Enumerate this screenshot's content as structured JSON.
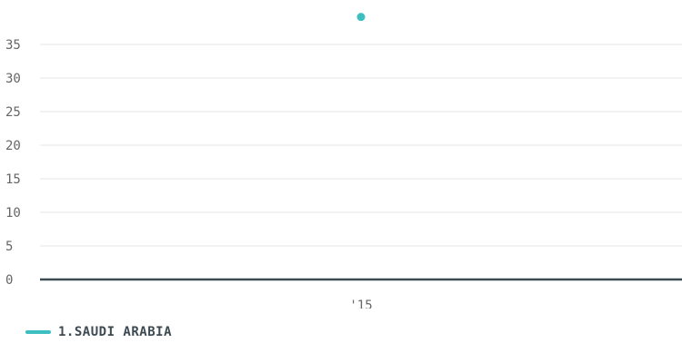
{
  "chart_data": {
    "type": "line",
    "title": "",
    "xlabel": "",
    "ylabel": "",
    "categories": [
      "'15"
    ],
    "ylim": [
      0,
      40
    ],
    "y_ticks": [
      0,
      5,
      10,
      15,
      20,
      25,
      30,
      35
    ],
    "grid": true,
    "legend_position": "bottom-left",
    "series": [
      {
        "name": "1.SAUDI ARABIA",
        "color": "#3dbfc1",
        "values": [
          39.1
        ]
      }
    ]
  }
}
